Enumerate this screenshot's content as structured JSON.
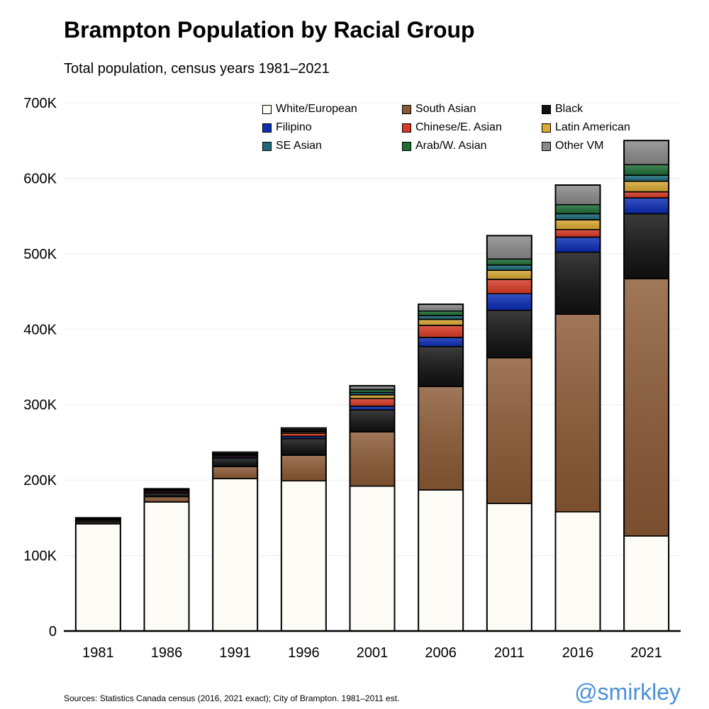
{
  "title": "Brampton Population by Racial Group",
  "subtitle": "Total population, census years 1981–2021",
  "source": "Sources: Statistics Canada census (2016, 2021 exact); City of Brampton. 1981–2011 est.",
  "handle": "@smirkley",
  "chart_data": {
    "type": "bar",
    "stacked": true,
    "title": "Brampton Population by Racial Group",
    "subtitle": "Total population, census years 1981–2021",
    "xlabel": "",
    "ylabel": "",
    "ylim": [
      0,
      700000
    ],
    "yticks": [
      0,
      100000,
      200000,
      300000,
      400000,
      500000,
      600000,
      700000
    ],
    "ytick_labels": [
      "0",
      "100K",
      "200K",
      "300K",
      "400K",
      "500K",
      "600K",
      "700K"
    ],
    "grid": true,
    "legend_placement": "top-right",
    "categories": [
      "1981",
      "1986",
      "1991",
      "1996",
      "2001",
      "2006",
      "2011",
      "2016",
      "2021"
    ],
    "series": [
      {
        "name": "White/European",
        "color": "#fdfcf7",
        "values": [
          142000,
          171000,
          202000,
          199000,
          192000,
          187000,
          169000,
          158000,
          126000
        ]
      },
      {
        "name": "South Asian",
        "color": "#8b5a35",
        "values": [
          2000,
          7000,
          16000,
          34000,
          72000,
          137000,
          193000,
          262000,
          341000
        ]
      },
      {
        "name": "Black",
        "color": "#111111",
        "values": [
          3000,
          5000,
          11000,
          22000,
          29000,
          53000,
          63000,
          82000,
          86000
        ]
      },
      {
        "name": "Filipino",
        "color": "#0d2db5",
        "values": [
          500,
          1000,
          2000,
          3000,
          5000,
          12000,
          22000,
          20000,
          21000
        ]
      },
      {
        "name": "Chinese/E. Asian",
        "color": "#d93a25",
        "values": [
          1500,
          2000,
          2000,
          4000,
          10000,
          16000,
          19000,
          10000,
          8000
        ]
      },
      {
        "name": "Latin American",
        "color": "#d9a832",
        "values": [
          0,
          500,
          1000,
          2000,
          5000,
          8000,
          12000,
          13000,
          14000
        ]
      },
      {
        "name": "SE Asian",
        "color": "#1d6a7a",
        "values": [
          0,
          500,
          0,
          1000,
          3000,
          5000,
          7000,
          8000,
          8000
        ]
      },
      {
        "name": "Arab/W. Asian",
        "color": "#1e6e36",
        "values": [
          0,
          500,
          1000,
          2000,
          4000,
          6000,
          8000,
          12000,
          14000
        ]
      },
      {
        "name": "Other VM",
        "color": "#8a8a8a",
        "values": [
          1000,
          1000,
          2000,
          2000,
          5000,
          9000,
          31000,
          26000,
          32000
        ]
      }
    ]
  }
}
